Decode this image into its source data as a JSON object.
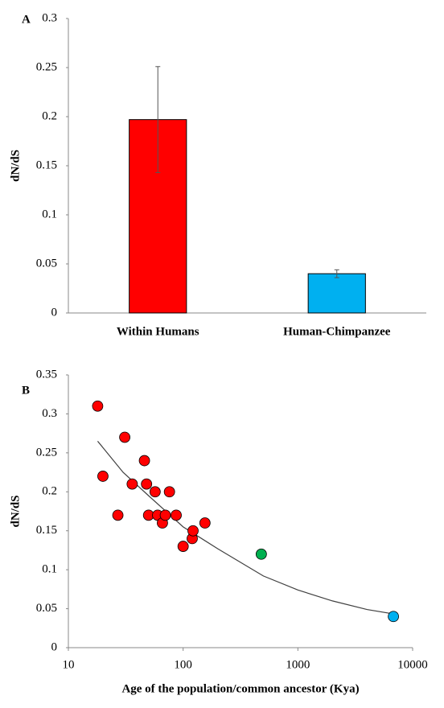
{
  "chart_data": [
    {
      "type": "bar",
      "label": "A",
      "y_label": "dN/dS",
      "categories": [
        "Within Humans",
        "Human-Chimpanzee"
      ],
      "series": [
        {
          "colors": [
            "#ff0000",
            "#00b0f0"
          ],
          "values": [
            0.197,
            0.04
          ],
          "errors": [
            0.054,
            0.004
          ]
        }
      ],
      "ylim": [
        0,
        0.3
      ],
      "yticks": [
        0,
        0.05,
        0.1,
        0.15,
        0.2,
        0.25,
        0.3
      ]
    },
    {
      "type": "scatter",
      "label": "B",
      "y_label": "dN/dS",
      "x_label": "Age of the population/common ancestor (Kya)",
      "xscale": "log",
      "xlim": [
        10,
        10000
      ],
      "xticks": [
        10,
        100,
        1000,
        10000
      ],
      "ylim": [
        0,
        0.35
      ],
      "yticks": [
        0,
        0.05,
        0.1,
        0.15,
        0.2,
        0.25,
        0.3,
        0.35
      ],
      "series": [
        {
          "color": "#ff0000",
          "x": [
            18,
            20,
            27,
            31,
            36,
            46,
            48,
            50,
            57,
            60,
            66,
            70,
            76,
            87,
            100,
            120,
            122,
            155
          ],
          "values": [
            0.31,
            0.22,
            0.17,
            0.27,
            0.21,
            0.24,
            0.21,
            0.17,
            0.2,
            0.17,
            0.16,
            0.17,
            0.2,
            0.17,
            0.13,
            0.14,
            0.15,
            0.16
          ]
        },
        {
          "color": "#00b050",
          "x": [
            480
          ],
          "values": [
            0.12
          ]
        },
        {
          "color": "#00b0f0",
          "x": [
            6800
          ],
          "values": [
            0.04
          ]
        }
      ],
      "trend": {
        "color": "#404040",
        "x": [
          18,
          30,
          50,
          100,
          200,
          500,
          1000,
          2000,
          4000,
          7000
        ],
        "values": [
          0.265,
          0.225,
          0.195,
          0.155,
          0.127,
          0.092,
          0.074,
          0.06,
          0.049,
          0.043
        ]
      }
    }
  ]
}
